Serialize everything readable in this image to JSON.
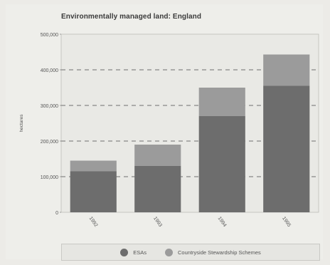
{
  "chart_data": {
    "type": "bar",
    "stacked": true,
    "title": "Environmentally managed land: England",
    "ylabel": "hectares",
    "xlabel": "",
    "categories": [
      "1992",
      "1993",
      "1994",
      "1995"
    ],
    "series": [
      {
        "name": "ESAs",
        "values": [
          115000,
          130000,
          270000,
          355000
        ],
        "color": "#6d6d6d"
      },
      {
        "name": "Countryside Stewardship Schemes",
        "values": [
          30000,
          60000,
          80000,
          88000
        ],
        "color": "#9b9b9b"
      }
    ],
    "ylim": [
      0,
      500000
    ],
    "yticks": [
      0,
      100000,
      200000,
      300000,
      400000,
      500000
    ],
    "ytick_labels": [
      "0",
      "100,000",
      "200,000",
      "300,000",
      "400,000",
      "500,000"
    ],
    "grid": true,
    "legend_position": "bottom"
  }
}
